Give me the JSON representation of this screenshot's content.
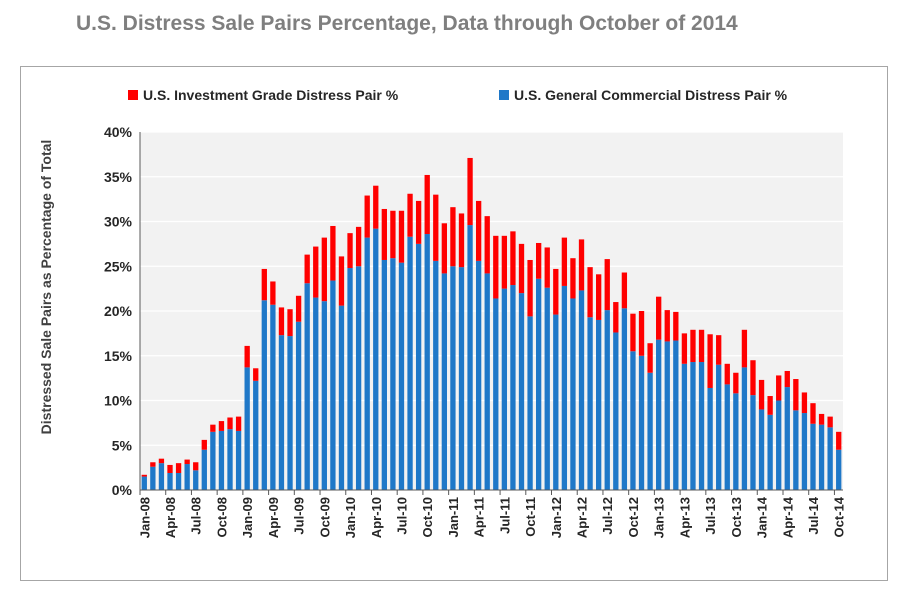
{
  "title": "U.S. Distress Sale Pairs Percentage, Data through October of 2014",
  "colors": {
    "investment_grade": "#ff0000",
    "general_commercial": "#1f78c8",
    "plot_background": "#f2f2f2",
    "gridline": "#ffffff",
    "axis_text": "#262626",
    "title_text": "#7f7f7f"
  },
  "chart_data": {
    "type": "bar",
    "stacked": true,
    "title": "U.S. Distress Sale Pairs Percentage, Data through October of 2014",
    "ylabel": "Distressed Sale Pairs as Percentage of Total",
    "xlabel": "",
    "ylim": [
      0,
      40
    ],
    "yticks": [
      "0%",
      "5%",
      "10%",
      "15%",
      "20%",
      "25%",
      "30%",
      "35%",
      "40%"
    ],
    "grid": true,
    "legend_position": "top",
    "categories": [
      "Jan-08",
      "Feb-08",
      "Mar-08",
      "Apr-08",
      "May-08",
      "Jun-08",
      "Jul-08",
      "Aug-08",
      "Sep-08",
      "Oct-08",
      "Nov-08",
      "Dec-08",
      "Jan-09",
      "Feb-09",
      "Mar-09",
      "Apr-09",
      "May-09",
      "Jun-09",
      "Jul-09",
      "Aug-09",
      "Sep-09",
      "Oct-09",
      "Nov-09",
      "Dec-09",
      "Jan-10",
      "Feb-10",
      "Mar-10",
      "Apr-10",
      "May-10",
      "Jun-10",
      "Jul-10",
      "Aug-10",
      "Sep-10",
      "Oct-10",
      "Nov-10",
      "Dec-10",
      "Jan-11",
      "Feb-11",
      "Mar-11",
      "Apr-11",
      "May-11",
      "Jun-11",
      "Jul-11",
      "Aug-11",
      "Sep-11",
      "Oct-11",
      "Nov-11",
      "Dec-11",
      "Jan-12",
      "Feb-12",
      "Mar-12",
      "Apr-12",
      "May-12",
      "Jun-12",
      "Jul-12",
      "Aug-12",
      "Sep-12",
      "Oct-12",
      "Nov-12",
      "Dec-12",
      "Jan-13",
      "Feb-13",
      "Mar-13",
      "Apr-13",
      "May-13",
      "Jun-13",
      "Jul-13",
      "Aug-13",
      "Sep-13",
      "Oct-13",
      "Nov-13",
      "Dec-13",
      "Jan-14",
      "Feb-14",
      "Mar-14",
      "Apr-14",
      "May-14",
      "Jun-14",
      "Jul-14",
      "Aug-14",
      "Sep-14",
      "Oct-14"
    ],
    "tick_labels": [
      "Jan-08",
      "Apr-08",
      "Jul-08",
      "Oct-08",
      "Jan-09",
      "Apr-09",
      "Jul-09",
      "Oct-09",
      "Jan-10",
      "Apr-10",
      "Jul-10",
      "Oct-10",
      "Jan-11",
      "Apr-11",
      "Jul-11",
      "Oct-11",
      "Jan-12",
      "Apr-12",
      "Jul-12",
      "Oct-12",
      "Jan-13",
      "Apr-13",
      "Jul-13",
      "Oct-13",
      "Jan-14",
      "Apr-14",
      "Jul-14",
      "Oct-14"
    ],
    "series": [
      {
        "name": "U.S. General Commercial Distress Pair %",
        "color": "#1f78c8",
        "values": [
          1.5,
          2.6,
          3.0,
          1.9,
          1.9,
          2.9,
          2.2,
          4.5,
          6.5,
          6.6,
          6.8,
          6.6,
          13.7,
          12.2,
          21.2,
          20.7,
          17.3,
          17.2,
          18.8,
          23.1,
          21.5,
          21.1,
          23.4,
          20.6,
          24.8,
          25.0,
          28.2,
          29.2,
          25.7,
          25.9,
          25.4,
          28.3,
          27.5,
          28.6,
          25.6,
          24.2,
          25.0,
          24.9,
          29.6,
          25.6,
          24.2,
          21.4,
          22.5,
          22.9,
          22.0,
          19.4,
          23.6,
          22.6,
          19.6,
          22.8,
          21.4,
          22.3,
          19.3,
          19.0,
          20.1,
          17.6,
          20.3,
          15.5,
          15.0,
          13.1,
          16.8,
          16.6,
          16.7,
          14.1,
          14.3,
          14.3,
          11.4,
          14.0,
          11.8,
          10.8,
          13.7,
          10.6,
          9.0,
          8.4,
          10.0,
          11.5,
          8.9,
          8.6,
          7.4,
          7.3,
          7.0,
          4.5
        ]
      },
      {
        "name": "U.S. Investment Grade Distress Pair %",
        "color": "#ff0000",
        "values": [
          0.2,
          0.5,
          0.5,
          0.9,
          1.1,
          0.5,
          0.9,
          1.1,
          0.8,
          1.1,
          1.3,
          1.6,
          2.4,
          1.4,
          3.5,
          2.6,
          3.1,
          3.0,
          2.9,
          3.2,
          5.7,
          7.1,
          6.1,
          5.5,
          3.9,
          4.4,
          4.7,
          4.8,
          5.7,
          5.3,
          5.8,
          4.8,
          4.8,
          6.6,
          7.4,
          5.6,
          6.6,
          6.0,
          7.5,
          6.7,
          6.4,
          7.0,
          5.9,
          6.0,
          5.5,
          6.3,
          4.0,
          4.5,
          5.1,
          5.4,
          4.5,
          5.7,
          5.6,
          5.1,
          5.7,
          3.4,
          4.0,
          4.2,
          5.0,
          3.3,
          4.8,
          3.5,
          3.2,
          3.4,
          3.6,
          3.6,
          6.0,
          3.3,
          2.3,
          2.3,
          4.2,
          3.9,
          3.3,
          2.1,
          2.8,
          1.8,
          3.5,
          2.3,
          2.3,
          1.2,
          1.2,
          2.0
        ]
      }
    ]
  }
}
